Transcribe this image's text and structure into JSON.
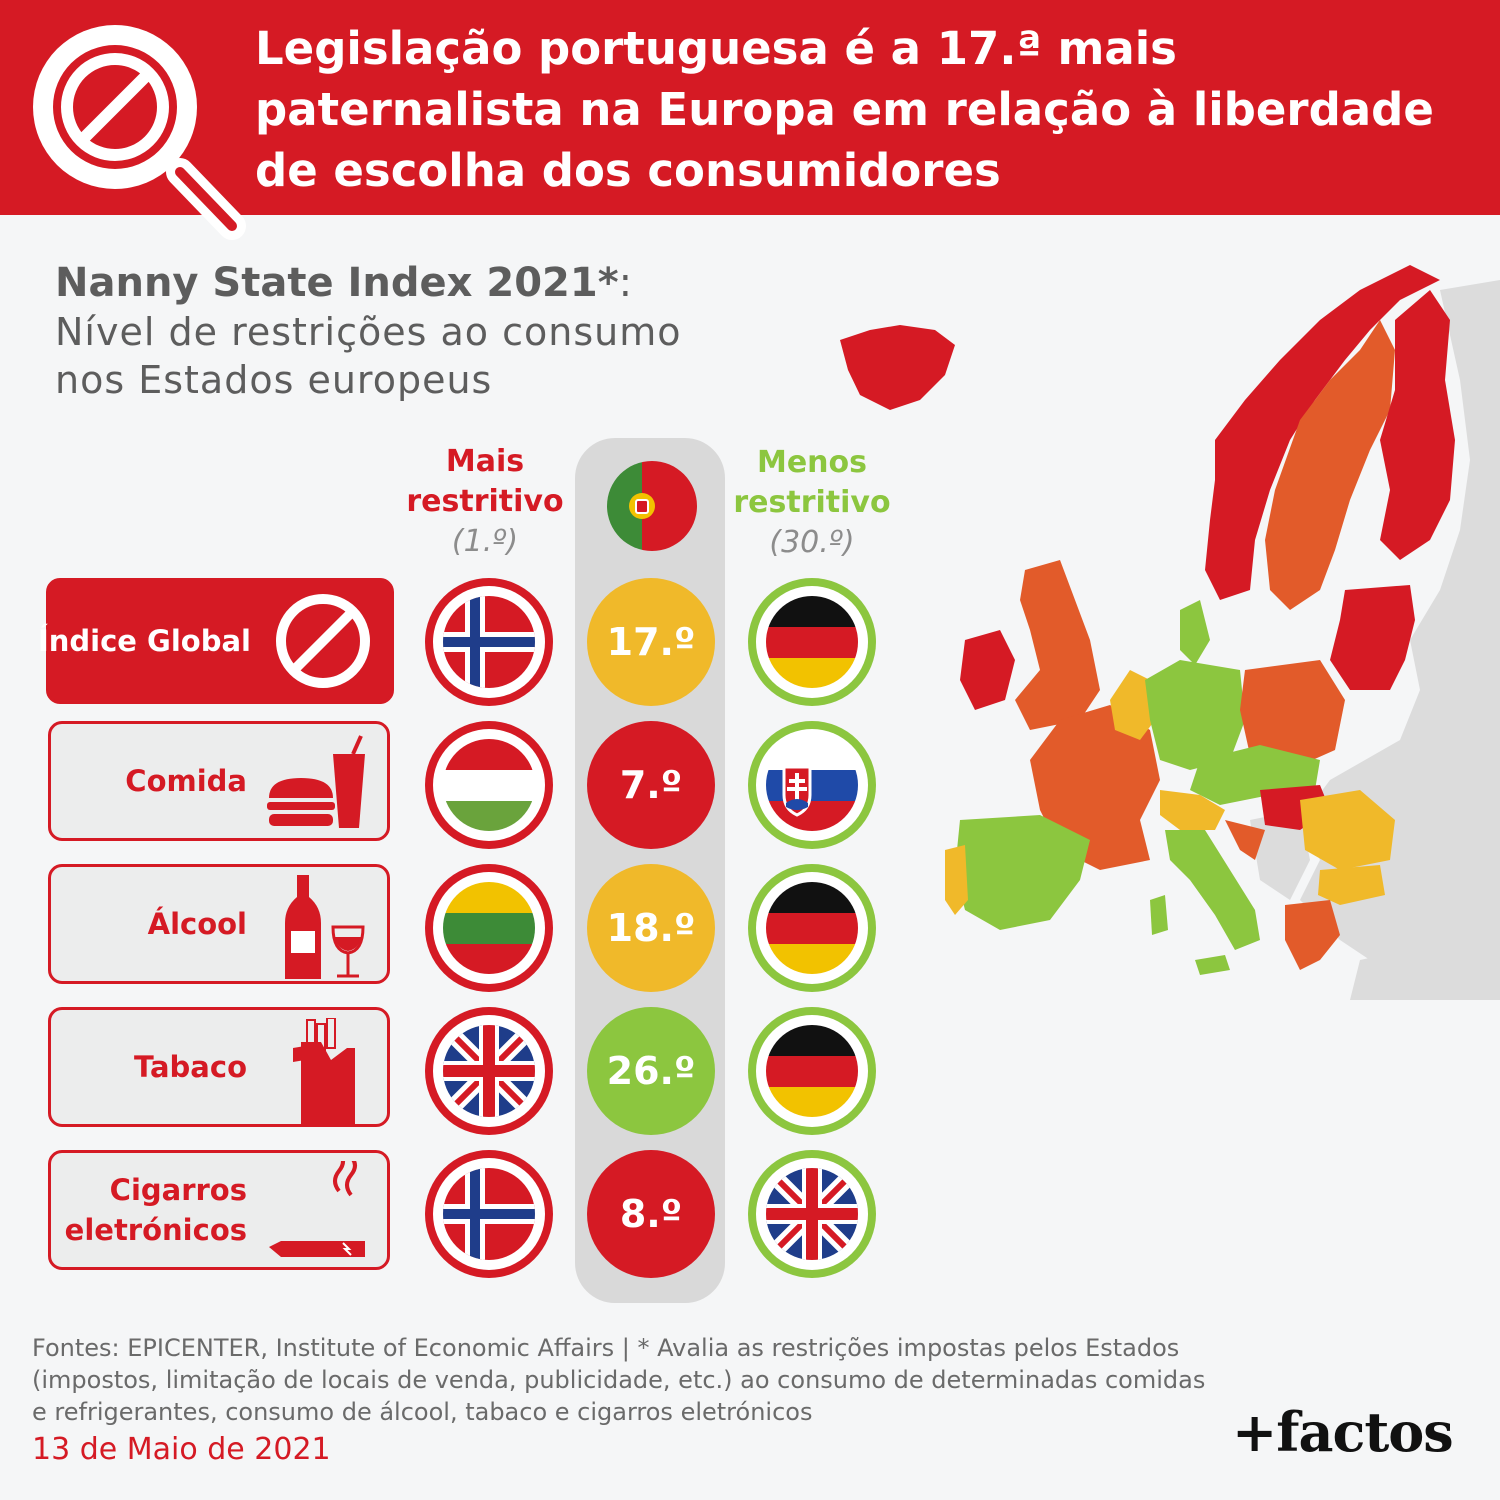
{
  "header": {
    "title": "Legislação portuguesa é a 17.ª mais paternalista na Europa em relação à liberdade de escolha dos consumidores"
  },
  "subtitle": {
    "bold": "Nanny State Index 2021*",
    "colon": ":",
    "line": "Nível de restrições ao consumo nos Estados europeus"
  },
  "columns": {
    "most": {
      "label": "Mais restritivo",
      "rank": "(1.º)",
      "color": "#d51a24"
    },
    "least": {
      "label": "Menos restritivo",
      "rank": "(30.º)",
      "color": "#8cc63f"
    }
  },
  "rows": [
    {
      "label": "Índice Global",
      "icon": "prohibited-icon",
      "most": "norway",
      "pt_rank": "17.º",
      "pt_color": "#f0b92a",
      "least": "germany"
    },
    {
      "label": "Comida",
      "icon": "burger-soda-icon",
      "most": "hungary",
      "pt_rank": "7.º",
      "pt_color": "#d51a24",
      "least": "slovakia"
    },
    {
      "label": "Álcool",
      "icon": "wine-bottle-glass-icon",
      "most": "lithuania",
      "pt_rank": "18.º",
      "pt_color": "#f0b92a",
      "least": "germany"
    },
    {
      "label": "Tabaco",
      "icon": "cigarette-pack-icon",
      "most": "united-kingdom",
      "pt_rank": "26.º",
      "pt_color": "#8cc63f",
      "least": "germany"
    },
    {
      "label": "Cigarros eletrónicos",
      "icon": "e-cigarette-icon",
      "most": "norway",
      "pt_rank": "8.º",
      "pt_color": "#d51a24",
      "least": "united-kingdom"
    }
  ],
  "footer": {
    "sources": "Fontes: EPICENTER, Institute of Economic Affairs | * Avalia as restrições impostas pelos Estados (impostos, limitação de locais de venda, publicidade, etc.) ao consumo de determinadas comidas e refrigerantes, consumo de álcool, tabaco e cigarros eletrónicos",
    "date": "13 de Maio de 2021",
    "brand": "+factos"
  },
  "colors": {
    "red": "#d51a24",
    "orange": "#e25b2a",
    "yellow": "#f0b92a",
    "green": "#8cc63f",
    "grey": "#dcdcdc"
  }
}
